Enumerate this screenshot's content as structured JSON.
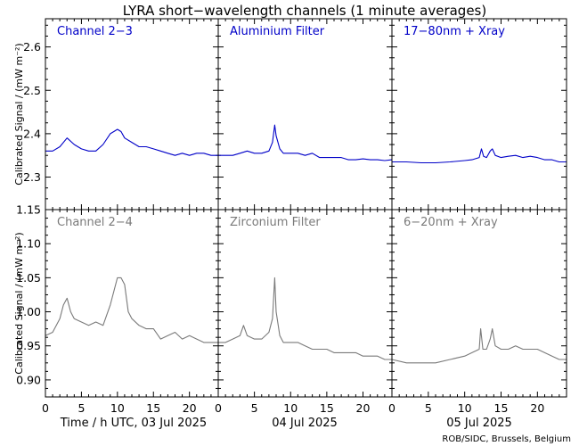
{
  "chart_data": {
    "type": "line",
    "title": "LYRA short−wavelength channels (1 minute averages)",
    "credit": "ROB/SIDC, Brussels, Belgium",
    "colors": {
      "top": "#0000c8",
      "bottom": "#7a7a7a",
      "frame": "#000000"
    },
    "x_ticks": [
      0,
      5,
      10,
      15,
      20
    ],
    "day_labels": [
      "Time / h UTC, 03 Jul 2025",
      "04 Jul 2025",
      "05 Jul 2025"
    ],
    "rows": [
      {
        "ylabel": "Calibrated Signal / (mW m⁻²)",
        "ylim": [
          2.225,
          2.665
        ],
        "y_ticks": [
          2.3,
          2.4,
          2.5,
          2.6
        ],
        "y_tick_labels": [
          "2.3",
          "2.4",
          "2.5",
          "2.6"
        ],
        "color": "#0000c8",
        "panels": [
          {
            "label": "Channel 2−3",
            "x": [
              0,
              1,
              2,
              3,
              4,
              5,
              6,
              7,
              8,
              9,
              9.5,
              10,
              10.5,
              11,
              12,
              13,
              14,
              15,
              16,
              17,
              18,
              19,
              20,
              21,
              22,
              23,
              24
            ],
            "y": [
              2.36,
              2.36,
              2.37,
              2.39,
              2.375,
              2.365,
              2.36,
              2.36,
              2.375,
              2.4,
              2.405,
              2.41,
              2.405,
              2.39,
              2.38,
              2.37,
              2.37,
              2.365,
              2.36,
              2.355,
              2.35,
              2.355,
              2.35,
              2.355,
              2.355,
              2.35,
              2.35
            ]
          },
          {
            "label": "Aluminium Filter",
            "x": [
              0,
              1,
              2,
              3,
              4,
              5,
              6,
              7,
              7.5,
              7.8,
              8,
              8.5,
              9,
              10,
              11,
              12,
              13,
              14,
              15,
              16,
              17,
              18,
              19,
              20,
              21,
              22,
              23,
              24
            ],
            "y": [
              2.35,
              2.35,
              2.35,
              2.355,
              2.36,
              2.355,
              2.355,
              2.36,
              2.38,
              2.42,
              2.395,
              2.365,
              2.355,
              2.355,
              2.355,
              2.35,
              2.355,
              2.345,
              2.345,
              2.345,
              2.345,
              2.34,
              2.34,
              2.342,
              2.34,
              2.34,
              2.338,
              2.34
            ]
          },
          {
            "label": "17−80nm + Xray",
            "x": [
              0,
              2,
              4,
              6,
              8,
              10,
              11,
              12,
              12.3,
              12.6,
              13,
              13.5,
              13.8,
              14.2,
              15,
              16,
              17,
              18,
              19,
              20,
              21,
              22,
              23,
              24
            ],
            "y": [
              2.335,
              2.335,
              2.333,
              2.333,
              2.335,
              2.338,
              2.34,
              2.345,
              2.365,
              2.348,
              2.345,
              2.36,
              2.365,
              2.35,
              2.345,
              2.348,
              2.35,
              2.345,
              2.348,
              2.345,
              2.34,
              2.34,
              2.335,
              2.335
            ]
          }
        ]
      },
      {
        "ylabel": "Calibrated Signal / (mW m⁻²)",
        "ylim": [
          0.875,
          1.15
        ],
        "y_ticks": [
          0.9,
          0.95,
          1.0,
          1.05,
          1.1,
          1.15
        ],
        "y_tick_labels": [
          "0.90",
          "0.95",
          "1.00",
          "1.05",
          "1.10",
          "1.15"
        ],
        "color": "#7a7a7a",
        "panels": [
          {
            "label": "Channel 2−4",
            "x": [
              0,
              1,
              2,
              2.5,
              3,
              3.5,
              4,
              5,
              6,
              7,
              8,
              8.5,
              9,
              9.5,
              10,
              10.5,
              11,
              11.5,
              12,
              13,
              14,
              15,
              16,
              17,
              18,
              19,
              20,
              21,
              22,
              23,
              24
            ],
            "y": [
              0.965,
              0.97,
              0.99,
              1.01,
              1.02,
              1.0,
              0.99,
              0.985,
              0.98,
              0.985,
              0.98,
              0.995,
              1.01,
              1.03,
              1.05,
              1.05,
              1.04,
              1.0,
              0.99,
              0.98,
              0.975,
              0.975,
              0.96,
              0.965,
              0.97,
              0.96,
              0.965,
              0.96,
              0.955,
              0.955,
              0.955
            ]
          },
          {
            "label": "Zirconium Filter",
            "x": [
              0,
              1,
              2,
              3,
              3.5,
              4,
              5,
              6,
              7,
              7.5,
              7.8,
              8,
              8.5,
              9,
              10,
              11,
              12,
              13,
              14,
              15,
              16,
              17,
              18,
              19,
              20,
              21,
              22,
              23,
              24
            ],
            "y": [
              0.955,
              0.955,
              0.96,
              0.965,
              0.98,
              0.965,
              0.96,
              0.96,
              0.97,
              0.99,
              1.05,
              1.0,
              0.965,
              0.955,
              0.955,
              0.955,
              0.95,
              0.945,
              0.945,
              0.945,
              0.94,
              0.94,
              0.94,
              0.94,
              0.935,
              0.935,
              0.935,
              0.93,
              0.93
            ]
          },
          {
            "label": "6−20nm + Xray",
            "x": [
              0,
              2,
              4,
              6,
              8,
              10,
              11,
              12,
              12.2,
              12.5,
              13,
              13.5,
              13.8,
              14.2,
              15,
              16,
              17,
              18,
              19,
              20,
              21,
              22,
              23,
              24
            ],
            "y": [
              0.93,
              0.925,
              0.925,
              0.925,
              0.93,
              0.935,
              0.94,
              0.945,
              0.975,
              0.945,
              0.945,
              0.96,
              0.975,
              0.95,
              0.945,
              0.945,
              0.95,
              0.945,
              0.945,
              0.945,
              0.94,
              0.935,
              0.93,
              0.93
            ]
          }
        ]
      }
    ]
  }
}
